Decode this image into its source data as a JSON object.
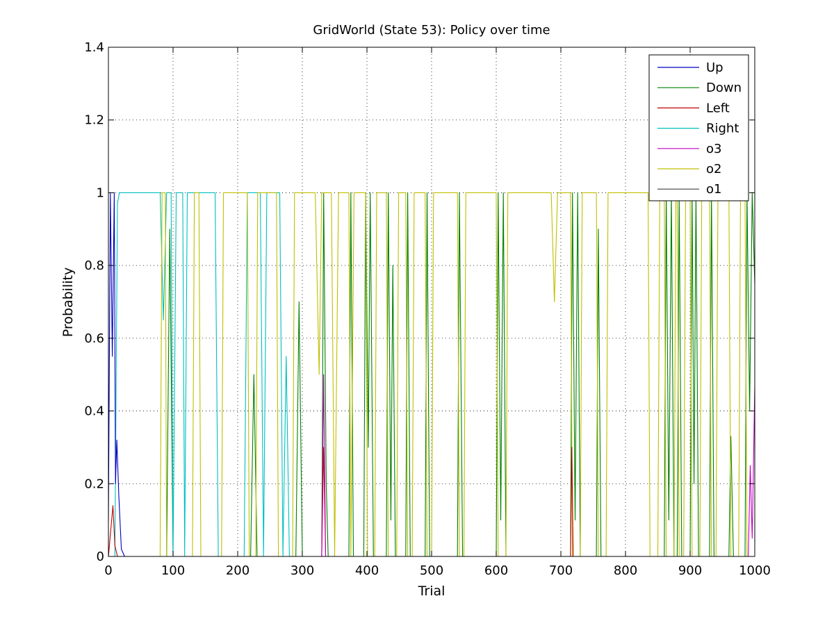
{
  "chart_data": {
    "type": "line",
    "title": "GridWorld (State 53): Policy over time",
    "xlabel": "Trial",
    "ylabel": "Probability",
    "xlim": [
      0,
      1000
    ],
    "ylim": [
      0,
      1.4
    ],
    "xticks": [
      0,
      100,
      200,
      300,
      400,
      500,
      600,
      700,
      800,
      900,
      1000
    ],
    "yticks": [
      0,
      0.2,
      0.4,
      0.6,
      0.8,
      1,
      1.2,
      1.4
    ],
    "ytick_labels": [
      "0",
      "0.2",
      "0.4",
      "0.6",
      "0.8",
      "1",
      "1.2",
      "1.4"
    ],
    "grid": true,
    "legend_position": "top-right",
    "series": [
      {
        "name": "Up",
        "color": "#0000bf",
        "segments": [
          [
            0,
            0.1
          ],
          [
            3,
            1.0
          ],
          [
            6,
            0.55
          ],
          [
            9,
            1.0
          ],
          [
            11,
            0.2
          ],
          [
            13,
            0.32
          ],
          [
            16,
            0.17
          ],
          [
            20,
            0.02
          ],
          [
            25,
            0.0
          ],
          [
            1000,
            0.0
          ]
        ]
      },
      {
        "name": "Down",
        "color": "#007f00",
        "segments": [
          [
            0,
            0.0
          ],
          [
            90,
            0.0
          ],
          [
            95,
            0.9
          ],
          [
            100,
            0.0
          ],
          [
            220,
            0.0
          ],
          [
            225,
            0.5
          ],
          [
            230,
            0.0
          ],
          [
            290,
            0.0
          ],
          [
            295,
            0.7
          ],
          [
            300,
            0.0
          ],
          [
            330,
            0.0
          ],
          [
            333,
            1.0
          ],
          [
            337,
            0.2
          ],
          [
            340,
            0.0
          ],
          [
            372,
            0.0
          ],
          [
            375,
            1.0
          ],
          [
            379,
            0.0
          ],
          [
            395,
            0.0
          ],
          [
            398,
            1.0
          ],
          [
            402,
            0.3
          ],
          [
            405,
            1.0
          ],
          [
            410,
            0.0
          ],
          [
            430,
            0.0
          ],
          [
            433,
            1.0
          ],
          [
            437,
            0.1
          ],
          [
            440,
            0.8
          ],
          [
            444,
            0.0
          ],
          [
            460,
            0.0
          ],
          [
            463,
            1.0
          ],
          [
            467,
            0.0
          ],
          [
            490,
            0.0
          ],
          [
            493,
            1.0
          ],
          [
            497,
            0.0
          ],
          [
            540,
            0.0
          ],
          [
            543,
            1.0
          ],
          [
            548,
            0.0
          ],
          [
            600,
            0.0
          ],
          [
            603,
            1.0
          ],
          [
            607,
            0.1
          ],
          [
            611,
            1.0
          ],
          [
            615,
            0.0
          ],
          [
            715,
            0.0
          ],
          [
            718,
            1.0
          ],
          [
            722,
            0.1
          ],
          [
            726,
            1.0
          ],
          [
            730,
            0.0
          ],
          [
            755,
            0.0
          ],
          [
            758,
            0.9
          ],
          [
            762,
            0.0
          ],
          [
            860,
            0.0
          ],
          [
            863,
            1.0
          ],
          [
            867,
            0.1
          ],
          [
            871,
            1.0
          ],
          [
            875,
            0.0
          ],
          [
            880,
            0.0
          ],
          [
            883,
            1.0
          ],
          [
            887,
            0.0
          ],
          [
            900,
            0.0
          ],
          [
            903,
            1.0
          ],
          [
            906,
            0.2
          ],
          [
            909,
            1.0
          ],
          [
            913,
            0.0
          ],
          [
            930,
            0.0
          ],
          [
            933,
            1.0
          ],
          [
            937,
            0.0
          ],
          [
            960,
            0.0
          ],
          [
            963,
            0.33
          ],
          [
            967,
            0.0
          ],
          [
            985,
            0.0
          ],
          [
            988,
            1.0
          ],
          [
            992,
            0.4
          ],
          [
            996,
            1.0
          ],
          [
            1000,
            0.75
          ]
        ]
      },
      {
        "name": "Left",
        "color": "#bf0000",
        "segments": [
          [
            0,
            0.0
          ],
          [
            7,
            0.14
          ],
          [
            10,
            0.03
          ],
          [
            14,
            0.0
          ],
          [
            330,
            0.0
          ],
          [
            333,
            0.3
          ],
          [
            336,
            0.0
          ],
          [
            715,
            0.0
          ],
          [
            717,
            0.3
          ],
          [
            719,
            0.0
          ],
          [
            1000,
            0.0
          ]
        ]
      },
      {
        "name": "Right",
        "color": "#00bfbf",
        "segments": [
          [
            0,
            0.0
          ],
          [
            10,
            0.0
          ],
          [
            14,
            0.97
          ],
          [
            17,
            1.0
          ],
          [
            75,
            1.0
          ],
          [
            80,
            1.0
          ],
          [
            85,
            0.65
          ],
          [
            90,
            1.0
          ],
          [
            97,
            1.0
          ],
          [
            100,
            0.0
          ],
          [
            105,
            1.0
          ],
          [
            115,
            1.0
          ],
          [
            118,
            0.0
          ],
          [
            122,
            1.0
          ],
          [
            160,
            1.0
          ],
          [
            165,
            1.0
          ],
          [
            170,
            0.0
          ],
          [
            210,
            0.0
          ],
          [
            215,
            1.0
          ],
          [
            235,
            1.0
          ],
          [
            240,
            0.0
          ],
          [
            245,
            1.0
          ],
          [
            265,
            1.0
          ],
          [
            270,
            0.0
          ],
          [
            275,
            0.55
          ],
          [
            280,
            0.0
          ],
          [
            1000,
            0.0
          ]
        ]
      },
      {
        "name": "o3",
        "color": "#bf00bf",
        "segments": [
          [
            0,
            0.0
          ],
          [
            330,
            0.0
          ],
          [
            333,
            0.5
          ],
          [
            336,
            0.0
          ],
          [
            990,
            0.0
          ],
          [
            993,
            0.25
          ],
          [
            996,
            0.05
          ],
          [
            1000,
            0.47
          ]
        ]
      },
      {
        "name": "o2",
        "color": "#bfbf00",
        "segments": [
          [
            0,
            0.0
          ],
          [
            80,
            0.0
          ],
          [
            83,
            1.0
          ],
          [
            88,
            1.0
          ],
          [
            90,
            0.0
          ],
          [
            130,
            0.0
          ],
          [
            133,
            1.0
          ],
          [
            140,
            1.0
          ],
          [
            143,
            0.0
          ],
          [
            175,
            0.0
          ],
          [
            178,
            1.0
          ],
          [
            215,
            1.0
          ],
          [
            218,
            0.0
          ],
          [
            228,
            0.0
          ],
          [
            231,
            1.0
          ],
          [
            260,
            1.0
          ],
          [
            263,
            0.0
          ],
          [
            285,
            0.0
          ],
          [
            288,
            1.0
          ],
          [
            320,
            1.0
          ],
          [
            326,
            0.5
          ],
          [
            330,
            1.0
          ],
          [
            345,
            1.0
          ],
          [
            350,
            0.0
          ],
          [
            356,
            1.0
          ],
          [
            372,
            1.0
          ],
          [
            375,
            0.0
          ],
          [
            380,
            1.0
          ],
          [
            398,
            1.0
          ],
          [
            401,
            0.0
          ],
          [
            412,
            0.0
          ],
          [
            415,
            1.0
          ],
          [
            430,
            1.0
          ],
          [
            433,
            0.0
          ],
          [
            446,
            0.0
          ],
          [
            449,
            1.0
          ],
          [
            460,
            1.0
          ],
          [
            463,
            0.0
          ],
          [
            470,
            0.0
          ],
          [
            473,
            1.0
          ],
          [
            490,
            1.0
          ],
          [
            493,
            0.0
          ],
          [
            500,
            0.0
          ],
          [
            503,
            1.0
          ],
          [
            540,
            1.0
          ],
          [
            543,
            0.0
          ],
          [
            550,
            0.0
          ],
          [
            553,
            1.0
          ],
          [
            600,
            1.0
          ],
          [
            603,
            0.0
          ],
          [
            615,
            0.0
          ],
          [
            618,
            1.0
          ],
          [
            685,
            1.0
          ],
          [
            690,
            0.7
          ],
          [
            695,
            1.0
          ],
          [
            715,
            1.0
          ],
          [
            718,
            0.0
          ],
          [
            730,
            0.0
          ],
          [
            733,
            1.0
          ],
          [
            755,
            1.0
          ],
          [
            758,
            0.0
          ],
          [
            770,
            0.0
          ],
          [
            773,
            1.0
          ],
          [
            835,
            1.0
          ],
          [
            838,
            0.0
          ],
          [
            850,
            0.0
          ],
          [
            853,
            1.0
          ],
          [
            860,
            1.0
          ],
          [
            863,
            0.0
          ],
          [
            875,
            0.0
          ],
          [
            878,
            1.0
          ],
          [
            880,
            1.0
          ],
          [
            883,
            0.0
          ],
          [
            890,
            0.0
          ],
          [
            893,
            1.0
          ],
          [
            900,
            1.0
          ],
          [
            903,
            0.0
          ],
          [
            915,
            0.0
          ],
          [
            918,
            1.0
          ],
          [
            930,
            1.0
          ],
          [
            933,
            0.0
          ],
          [
            940,
            0.0
          ],
          [
            943,
            1.0
          ],
          [
            960,
            1.0
          ],
          [
            963,
            0.0
          ],
          [
            975,
            0.0
          ],
          [
            978,
            1.0
          ],
          [
            985,
            1.0
          ],
          [
            988,
            0.0
          ],
          [
            1000,
            0.0
          ]
        ]
      },
      {
        "name": "o1",
        "color": "#3f3f3f",
        "segments": [
          [
            0,
            0.0
          ],
          [
            1000,
            0.0
          ]
        ]
      }
    ]
  }
}
